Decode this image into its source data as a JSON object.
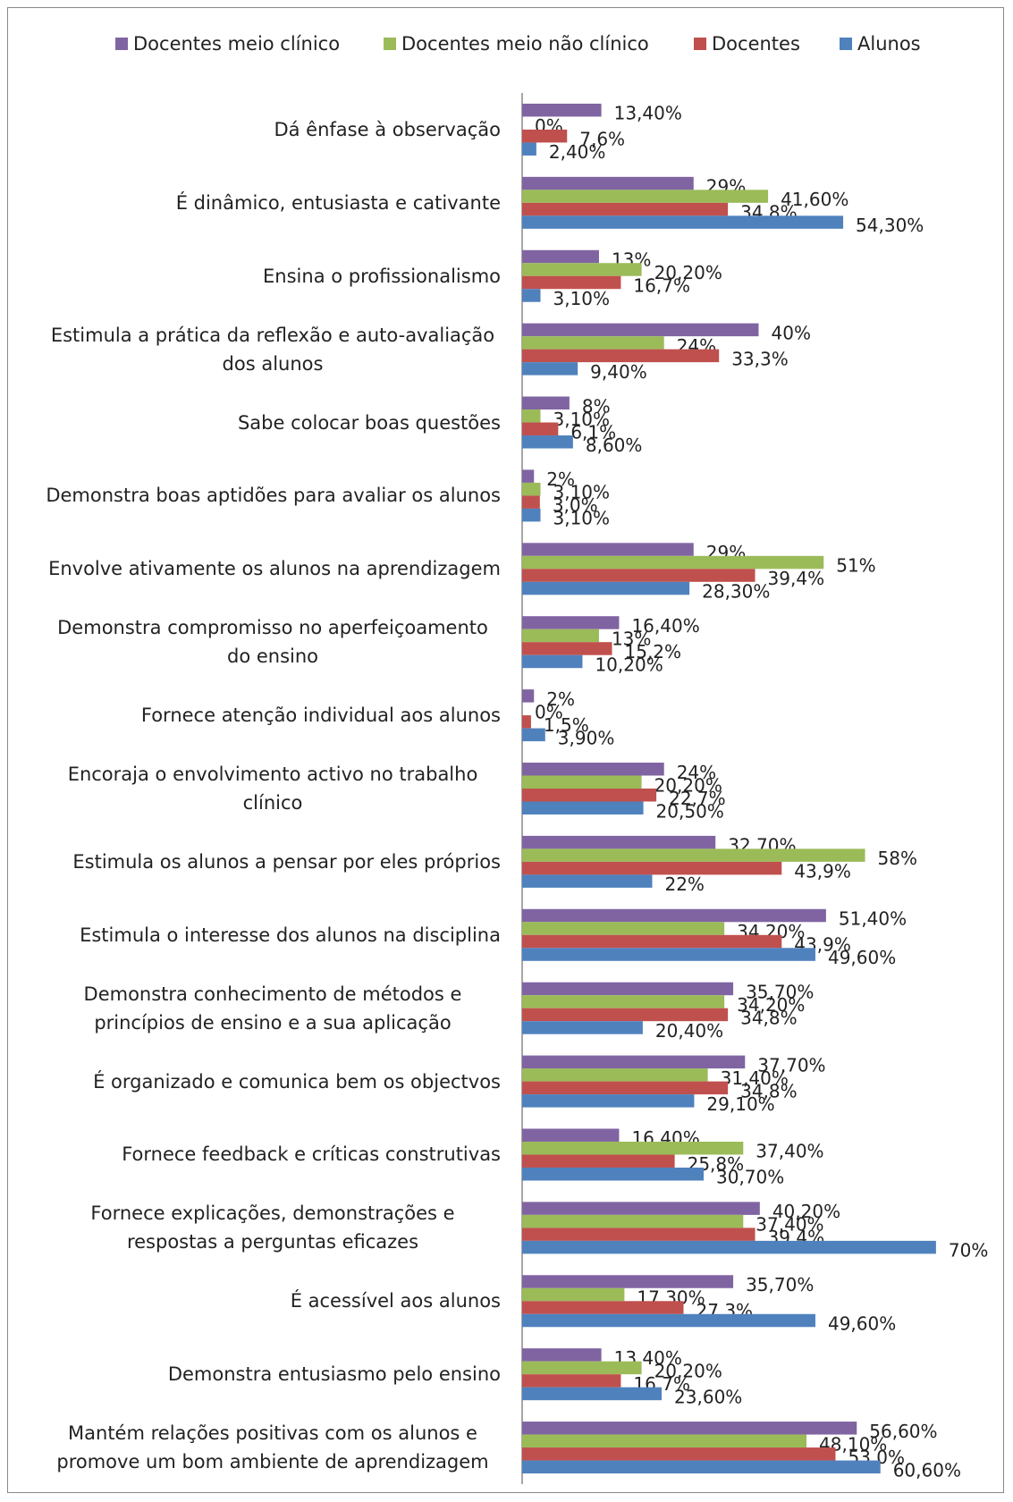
{
  "chart_data": {
    "type": "hbar",
    "categories": [
      "Dá ênfase à observação",
      "É dinâmico, entusiasta e cativante",
      "Ensina o profissionalismo",
      "Estimula a prática da reflexão e auto-avaliação dos alunos",
      "Sabe colocar boas questões",
      "Demonstra boas aptidões para avaliar os alunos",
      "Envolve ativamente os alunos na aprendizagem",
      "Demonstra compromisso no aperfeiçoamento do ensino",
      "Fornece atenção individual aos alunos",
      "Encoraja o envolvimento activo no trabalho clínico",
      "Estimula os alunos a pensar por eles próprios",
      "Estimula o interesse dos alunos na disciplina",
      "Demonstra conhecimento de métodos e princípios de ensino e a sua aplicação",
      "É organizado e comunica bem os objectvos",
      "Fornece feedback e críticas construtivas",
      "Fornece explicações, demonstrações e respostas a perguntas eficazes",
      "É acessível aos alunos",
      "Demonstra entusiasmo pelo ensino",
      "Mantém relações positivas com os alunos e promove um bom ambiente de aprendizagem"
    ],
    "series": [
      {
        "name": "Docentes meio clínico",
        "color": "#8064a2",
        "values": [
          13.4,
          29,
          13,
          40,
          8,
          2,
          29,
          16.4,
          2,
          24,
          32.7,
          51.4,
          35.7,
          37.7,
          16.4,
          40.2,
          35.7,
          13.4,
          56.6
        ],
        "value_labels": [
          "13,40%",
          "29%",
          "13%",
          "40%",
          "8%",
          "2%",
          "29%",
          "16,40%",
          "2%",
          "24%",
          "32,70%",
          "51,40%",
          "35,70%",
          "37,70%",
          "16,40%",
          "40,20%",
          "35,70%",
          "13,40%",
          "56,60%"
        ]
      },
      {
        "name": "Docentes meio não clínico",
        "color": "#9bbb59",
        "values": [
          0,
          41.6,
          20.2,
          24,
          3.1,
          3.1,
          51,
          13,
          0,
          20.2,
          58,
          34.2,
          34.2,
          31.4,
          37.4,
          37.4,
          17.3,
          20.2,
          48.1
        ],
        "value_labels": [
          "0%",
          "41,60%",
          "20,20%",
          "24%",
          "3,10%",
          "3,10%",
          "51%",
          "13%",
          "0%",
          "20,20%",
          "58%",
          "34,20%",
          "34,20%",
          "31,40%",
          "37,40%",
          "37,40%",
          "17,30%",
          "20,20%",
          "48,10%"
        ]
      },
      {
        "name": "Docentes",
        "color": "#c0504d",
        "values": [
          7.6,
          34.8,
          16.7,
          33.3,
          6.1,
          3.0,
          39.4,
          15.2,
          1.5,
          22.7,
          43.9,
          43.9,
          34.8,
          34.8,
          25.8,
          39.4,
          27.3,
          16.7,
          53.0
        ],
        "value_labels": [
          "7,6%",
          "34,8%",
          "16,7%",
          "33,3%",
          "6,1%",
          "3,0%",
          "39,4%",
          "15,2%",
          "1,5%",
          "22,7%",
          "43,9%",
          "43,9%",
          "34,8%",
          "34,8%",
          "25,8%",
          "39,4%",
          "27,3%",
          "16,7%",
          "53,0%"
        ]
      },
      {
        "name": "Alunos",
        "color": "#4f81bd",
        "values": [
          2.4,
          54.3,
          3.1,
          9.4,
          8.6,
          3.1,
          28.3,
          10.2,
          3.9,
          20.5,
          22,
          49.6,
          20.4,
          29.1,
          30.7,
          70,
          49.6,
          23.6,
          60.6
        ],
        "value_labels": [
          "2,40%",
          "54,30%",
          "3,10%",
          "9,40%",
          "8,60%",
          "3,10%",
          "28,30%",
          "10,20%",
          "3,90%",
          "20,50%",
          "22%",
          "49,60%",
          "20,40%",
          "29,10%",
          "30,70%",
          "70%",
          "49,60%",
          "23,60%",
          "60,60%"
        ]
      }
    ],
    "xlim": [
      0,
      80
    ],
    "legend": "top"
  }
}
